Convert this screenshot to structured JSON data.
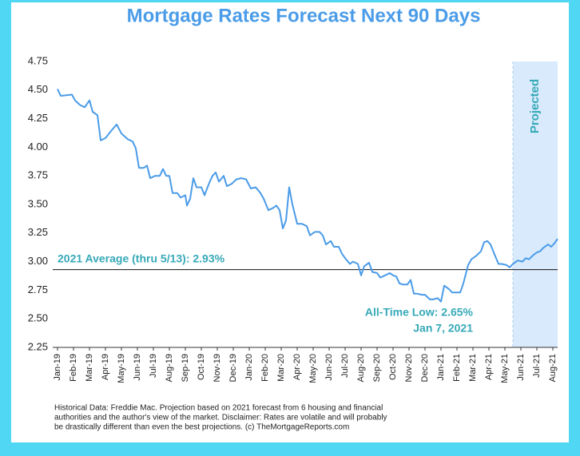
{
  "chart_data": {
    "type": "line",
    "title": "Mortgage Rates Forecast Next 90 Days",
    "color": "#4a9be8",
    "x": [
      0,
      0.2,
      0.9,
      1.1,
      1.4,
      1.7,
      2.0,
      2.2,
      2.5,
      2.7,
      3.0,
      3.4,
      3.7,
      4.0,
      4.4,
      4.7,
      4.9,
      5.1,
      5.4,
      5.6,
      5.8,
      6.1,
      6.4,
      6.6,
      6.8,
      7.0,
      7.2,
      7.5,
      7.7,
      8.0,
      8.1,
      8.3,
      8.5,
      8.7,
      9.0,
      9.2,
      9.5,
      9.7,
      9.9,
      10.1,
      10.4,
      10.6,
      10.9,
      11.2,
      11.5,
      11.8,
      12.1,
      12.4,
      12.7,
      12.9,
      13.2,
      13.5,
      13.7,
      13.9,
      14.1,
      14.3,
      14.5,
      14.7,
      15.0,
      15.3,
      15.6,
      15.8,
      16.1,
      16.4,
      16.6,
      16.8,
      17.1,
      17.3,
      17.6,
      17.8,
      18.0,
      18.3,
      18.5,
      18.8,
      19.0,
      19.2,
      19.5,
      19.7,
      20.0,
      20.2,
      20.5,
      20.8,
      21.0,
      21.2,
      21.4,
      21.6,
      21.9,
      22.1,
      22.3,
      22.5,
      22.8,
      23.0,
      23.3,
      23.5,
      23.8,
      24.0,
      24.2,
      24.5,
      24.7,
      25.0,
      25.2,
      25.4,
      25.7,
      25.9,
      26.2,
      26.5,
      26.7,
      26.9,
      27.1,
      27.3,
      27.6,
      27.8,
      28.1,
      28.3,
      28.5,
      28.8,
      29.1,
      29.3,
      29.5,
      29.8,
      30.0,
      30.2,
      30.4,
      30.7,
      30.9,
      31.1,
      31.3
    ],
    "values": [
      4.51,
      4.45,
      4.46,
      4.41,
      4.37,
      4.35,
      4.41,
      4.31,
      4.28,
      4.06,
      4.08,
      4.15,
      4.2,
      4.12,
      4.07,
      4.05,
      3.99,
      3.82,
      3.82,
      3.84,
      3.73,
      3.75,
      3.75,
      3.81,
      3.75,
      3.75,
      3.6,
      3.6,
      3.56,
      3.58,
      3.49,
      3.55,
      3.73,
      3.65,
      3.65,
      3.58,
      3.69,
      3.75,
      3.78,
      3.7,
      3.75,
      3.66,
      3.68,
      3.72,
      3.73,
      3.72,
      3.64,
      3.65,
      3.6,
      3.55,
      3.45,
      3.47,
      3.49,
      3.45,
      3.29,
      3.36,
      3.65,
      3.5,
      3.33,
      3.33,
      3.31,
      3.23,
      3.26,
      3.26,
      3.23,
      3.15,
      3.18,
      3.13,
      3.13,
      3.07,
      3.03,
      2.98,
      3.0,
      2.98,
      2.88,
      2.96,
      2.99,
      2.91,
      2.9,
      2.86,
      2.88,
      2.9,
      2.88,
      2.87,
      2.81,
      2.8,
      2.8,
      2.84,
      2.72,
      2.72,
      2.71,
      2.71,
      2.67,
      2.67,
      2.68,
      2.65,
      2.79,
      2.76,
      2.73,
      2.73,
      2.73,
      2.81,
      2.97,
      3.02,
      3.05,
      3.09,
      3.17,
      3.18,
      3.15,
      3.08,
      2.98,
      2.98,
      2.97,
      2.95,
      2.98,
      3.01,
      3.0,
      3.03,
      3.02,
      3.06,
      3.08,
      3.09,
      3.12,
      3.15,
      3.13,
      3.16,
      3.2
    ],
    "xlim": [
      -0.3,
      31.3
    ],
    "xticks": [
      {
        "value": 0,
        "label": "Jan-19"
      },
      {
        "value": 1,
        "label": "Feb-19"
      },
      {
        "value": 2,
        "label": "Mar-19"
      },
      {
        "value": 3,
        "label": "Apr-19"
      },
      {
        "value": 4,
        "label": "May-19"
      },
      {
        "value": 5,
        "label": "Jun-19"
      },
      {
        "value": 6,
        "label": "Jul-19"
      },
      {
        "value": 7,
        "label": "Aug-19"
      },
      {
        "value": 8,
        "label": "Sep-19"
      },
      {
        "value": 9,
        "label": "Oct-19"
      },
      {
        "value": 10,
        "label": "Nov-19"
      },
      {
        "value": 11,
        "label": "Dec-19"
      },
      {
        "value": 12,
        "label": "Jan-20"
      },
      {
        "value": 13,
        "label": "Feb-20"
      },
      {
        "value": 14,
        "label": "Mar-20"
      },
      {
        "value": 15,
        "label": "Apr-20"
      },
      {
        "value": 16,
        "label": "May-20"
      },
      {
        "value": 17,
        "label": "Jun-20"
      },
      {
        "value": 18,
        "label": "Jul-20"
      },
      {
        "value": 19,
        "label": "Aug-20"
      },
      {
        "value": 20,
        "label": "Sep-20"
      },
      {
        "value": 21,
        "label": "Oct-20"
      },
      {
        "value": 22,
        "label": "Nov-20"
      },
      {
        "value": 23,
        "label": "Dec-20"
      },
      {
        "value": 24,
        "label": "Jan-21"
      },
      {
        "value": 25,
        "label": "Feb-21"
      },
      {
        "value": 26,
        "label": "Mar-21"
      },
      {
        "value": 27,
        "label": "Apr-21"
      },
      {
        "value": 28,
        "label": "May-21"
      },
      {
        "value": 29,
        "label": "Jun-21"
      },
      {
        "value": 30,
        "label": "Jul-21"
      },
      {
        "value": 31,
        "label": "Aug-21"
      }
    ],
    "ylim": [
      2.25,
      4.75
    ],
    "yticks": [
      2.25,
      {
        "value": 2.5,
        "label": "2.50"
      },
      2.75,
      {
        "value": 3,
        "label": "3.00"
      },
      3.25,
      {
        "value": 3.5,
        "label": "3.50"
      },
      3.75,
      {
        "value": 4,
        "label": "4.00"
      },
      4.25,
      {
        "value": 4.5,
        "label": "4.50"
      },
      4.75
    ],
    "grid": false,
    "average_value": 2.93,
    "average_label": "2021 Average (thru 5/13): 2.93%",
    "low_label": [
      "All-Time Low: 2.65%",
      "Jan 7, 2021"
    ],
    "projected_start": 28.5,
    "projected_label": "Projected",
    "footnote": [
      "Historical Data: Freddie Mac. Projection based on 2021 forecast from 6 housing and financial",
      "authorities and the author's view of the market. Disclaimer: Rates are volatile and will probably",
      "be drastically different than even the best projections. (c) TheMortgageReports.com"
    ]
  }
}
